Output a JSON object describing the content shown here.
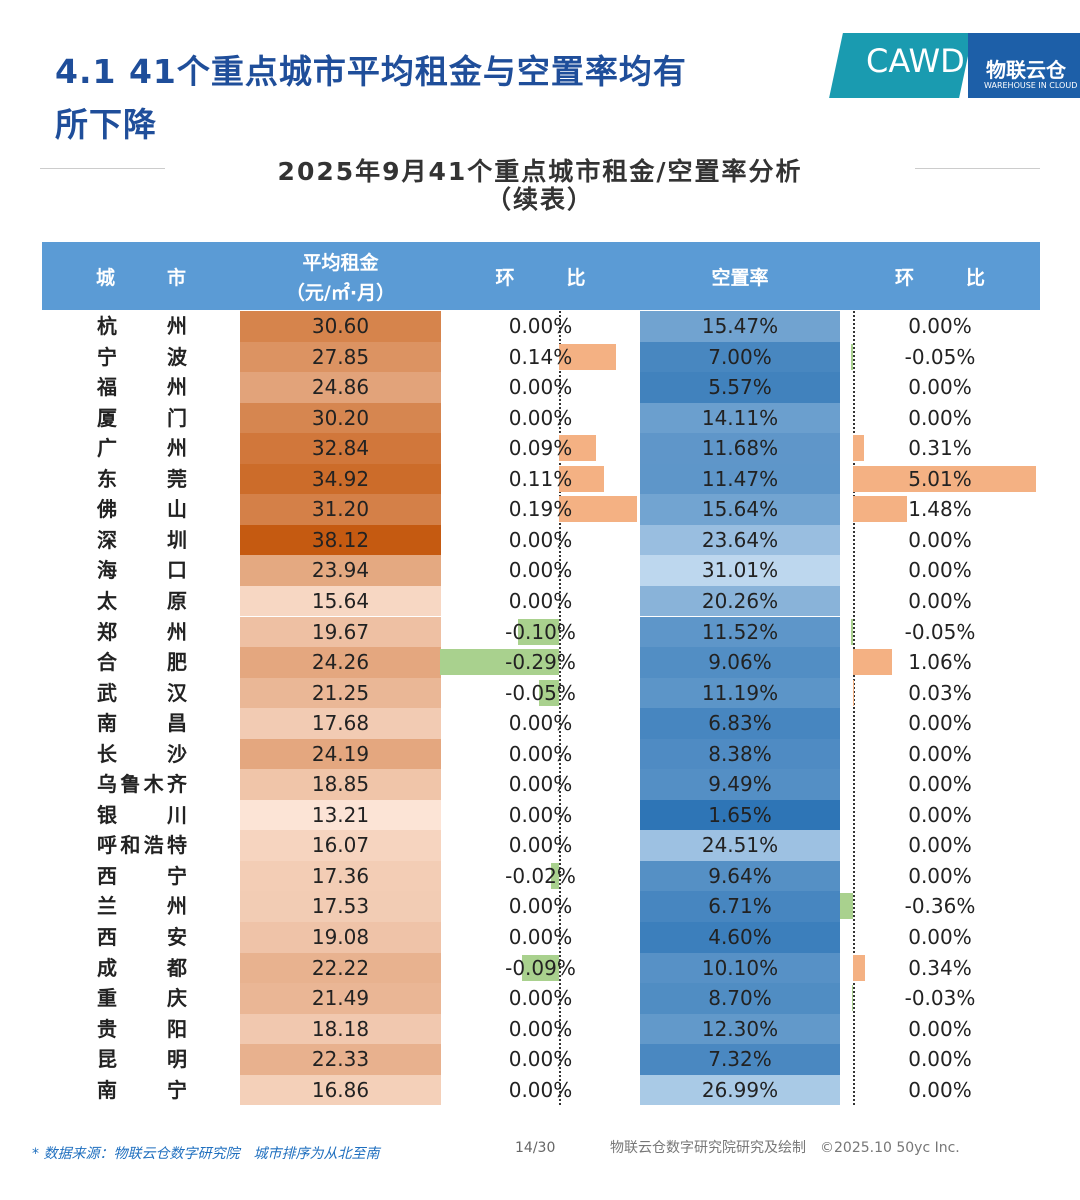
{
  "header": {
    "title_lines": [
      "4.1 41个重点城市平均租金与空置率均有",
      "所下降"
    ],
    "logo": {
      "cawd": "CAWD",
      "brand": "物联云仓",
      "brand_en": "WAREHOUSE IN CLOUD"
    }
  },
  "subtitle_lines": [
    "2025年9月41个重点城市租金/空置率分析",
    "（续表）"
  ],
  "table": {
    "columns": [
      "城市",
      [
        "平均租金",
        "（元/㎡·月）"
      ],
      "环比",
      "空置率",
      "环比"
    ],
    "rows": [
      [
        "杭州",
        "30.60",
        "0.00%",
        "15.47%",
        "0.00%"
      ],
      [
        "宁波",
        "27.85",
        "0.14%",
        "7.00%",
        "-0.05%"
      ],
      [
        "福州",
        "24.86",
        "0.00%",
        "5.57%",
        "0.00%"
      ],
      [
        "厦门",
        "30.20",
        "0.00%",
        "14.11%",
        "0.00%"
      ],
      [
        "广州",
        "32.84",
        "0.09%",
        "11.68%",
        "0.31%"
      ],
      [
        "东莞",
        "34.92",
        "0.11%",
        "11.47%",
        "5.01%"
      ],
      [
        "佛山",
        "31.20",
        "0.19%",
        "15.64%",
        "1.48%"
      ],
      [
        "深圳",
        "38.12",
        "0.00%",
        "23.64%",
        "0.00%"
      ],
      [
        "海口",
        "23.94",
        "0.00%",
        "31.01%",
        "0.00%"
      ],
      [
        "太原",
        "15.64",
        "0.00%",
        "20.26%",
        "0.00%"
      ],
      [
        "郑州",
        "19.67",
        "-0.10%",
        "11.52%",
        "-0.05%"
      ],
      [
        "合肥",
        "24.26",
        "-0.29%",
        "9.06%",
        "1.06%"
      ],
      [
        "武汉",
        "21.25",
        "-0.05%",
        "11.19%",
        "0.03%"
      ],
      [
        "南昌",
        "17.68",
        "0.00%",
        "6.83%",
        "0.00%"
      ],
      [
        "长沙",
        "24.19",
        "0.00%",
        "8.38%",
        "0.00%"
      ],
      [
        "乌鲁木齐",
        "18.85",
        "0.00%",
        "9.49%",
        "0.00%"
      ],
      [
        "银川",
        "13.21",
        "0.00%",
        "1.65%",
        "0.00%"
      ],
      [
        "呼和浩特",
        "16.07",
        "0.00%",
        "24.51%",
        "0.00%"
      ],
      [
        "西宁",
        "17.36",
        "-0.02%",
        "9.64%",
        "0.00%"
      ],
      [
        "兰州",
        "17.53",
        "0.00%",
        "6.71%",
        "-0.36%"
      ],
      [
        "西安",
        "19.08",
        "0.00%",
        "4.60%",
        "0.00%"
      ],
      [
        "成都",
        "22.22",
        "-0.09%",
        "10.10%",
        "0.34%"
      ],
      [
        "重庆",
        "21.49",
        "0.00%",
        "8.70%",
        "-0.03%"
      ],
      [
        "贵阳",
        "18.18",
        "0.00%",
        "12.30%",
        "0.00%"
      ],
      [
        "昆明",
        "22.33",
        "0.00%",
        "7.32%",
        "0.00%"
      ],
      [
        "南宁",
        "16.86",
        "0.00%",
        "26.99%",
        "0.00%"
      ]
    ]
  },
  "footer": {
    "source": "* 数据来源：物联云仓数字研究院　城市排序为从北至南",
    "page": "14/30",
    "credit": "物联云仓数字研究院研究及绘制　©2025.10 50yc Inc."
  }
}
